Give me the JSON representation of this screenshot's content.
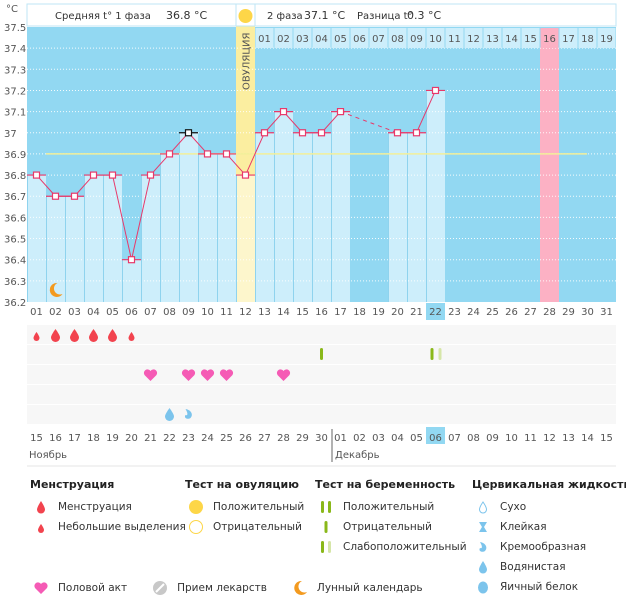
{
  "header": {
    "unit_label": "°C",
    "phase1_label": "Средняя t° 1 фаза",
    "phase1_value": "36.8 °C",
    "phase2_label": "2 фаза",
    "phase2_value": "37.1 °C",
    "diff_label": "Разница t°",
    "diff_value": "0.3 °C",
    "ovulation_label": "ОВУЛЯЦИЯ"
  },
  "colors": {
    "sky": "#92d8f2",
    "bar": "#cdeefb",
    "ovulation": "#fbeea0",
    "pink_day": "#fcb1c4",
    "line": "#e8386a",
    "coverline": "#f2ef9a",
    "today": "#92d8f2",
    "weekend": "#e8386a"
  },
  "chart_data": {
    "type": "line",
    "title": "",
    "ylabel": "°C",
    "ylim": [
      36.2,
      37.5
    ],
    "yticks": [
      "37.5",
      "37.4",
      "37.3",
      "37.2",
      "37.1",
      "37",
      "36.9",
      "36.8",
      "36.7",
      "36.6",
      "36.5",
      "36.4",
      "36.3",
      "36.2"
    ],
    "cycle_days": [
      "01",
      "02",
      "03",
      "04",
      "05",
      "06",
      "07",
      "08",
      "09",
      "10",
      "11",
      "12",
      "13",
      "14",
      "15",
      "16",
      "17",
      "18",
      "19",
      "20",
      "21",
      "22",
      "23",
      "24",
      "25",
      "26",
      "27",
      "28",
      "29",
      "30",
      "31"
    ],
    "phase2_days": [
      "01",
      "02",
      "03",
      "04",
      "05",
      "06",
      "07",
      "08",
      "09",
      "10",
      "11",
      "12",
      "13",
      "14",
      "15",
      "16",
      "17",
      "18",
      "19"
    ],
    "series": [
      {
        "name": "Базальная температура",
        "values": [
          36.8,
          36.7,
          36.7,
          36.8,
          36.8,
          36.4,
          36.8,
          36.9,
          37.0,
          36.9,
          36.9,
          36.8,
          37.0,
          37.1,
          37.0,
          37.0,
          37.1,
          null,
          null,
          37.0,
          37.0,
          37.2,
          null,
          null,
          null,
          null,
          null,
          null,
          null,
          null,
          null
        ]
      }
    ],
    "highlighted_point_day": 9,
    "gap_dashed_from_to": [
      17,
      20
    ],
    "coverline": 36.9,
    "coverline_range_days": [
      2,
      30
    ],
    "ovulation_day": 12,
    "expected_period_day": 28,
    "today_day": 22,
    "moon_day": 2
  },
  "events": {
    "menstruation": [
      {
        "day": 1,
        "kind": "light"
      },
      {
        "day": 2,
        "kind": "heavy"
      },
      {
        "day": 3,
        "kind": "heavy"
      },
      {
        "day": 4,
        "kind": "heavy"
      },
      {
        "day": 5,
        "kind": "heavy"
      },
      {
        "day": 6,
        "kind": "light"
      }
    ],
    "pregnancy_tests": [
      {
        "day": 16,
        "kind": "negative"
      },
      {
        "day": 22,
        "kind": "weak-positive"
      }
    ],
    "intercourse_days": [
      7,
      9,
      10,
      11,
      14
    ],
    "cervical_fluid": [
      {
        "day": 8,
        "kind": "watery"
      },
      {
        "day": 9,
        "kind": "creamy"
      }
    ]
  },
  "dates": {
    "labels": [
      "15",
      "16",
      "17",
      "18",
      "19",
      "20",
      "21",
      "22",
      "23",
      "24",
      "25",
      "26",
      "27",
      "28",
      "29",
      "30",
      "01",
      "02",
      "03",
      "04",
      "05",
      "06",
      "07",
      "08",
      "09",
      "10",
      "11",
      "12",
      "13",
      "14",
      "15"
    ],
    "weekend_idx": [
      3,
      4,
      10,
      11,
      17,
      18,
      24,
      25
    ],
    "today_idx": 21,
    "month1": "Ноябрь",
    "month2": "Декабрь",
    "month2_start_idx": 16
  },
  "legend": {
    "menstruation": {
      "title": "Менструация",
      "items": [
        "Менструация",
        "Небольшие выделения"
      ]
    },
    "ovulation_test": {
      "title": "Тест на овуляцию",
      "items": [
        "Положительный",
        "Отрицательный"
      ]
    },
    "pregnancy_test": {
      "title": "Тест на беременность",
      "items": [
        "Положительный",
        "Отрицательный",
        "Слабоположительный"
      ]
    },
    "cervical": {
      "title": "Цервикальная жидкость",
      "items": [
        "Сухо",
        "Клейкая",
        "Кремообразная",
        "Водянистая",
        "Яичный белок"
      ]
    },
    "other": [
      "Половой акт",
      "Прием лекарств",
      "Лунный календарь"
    ]
  }
}
